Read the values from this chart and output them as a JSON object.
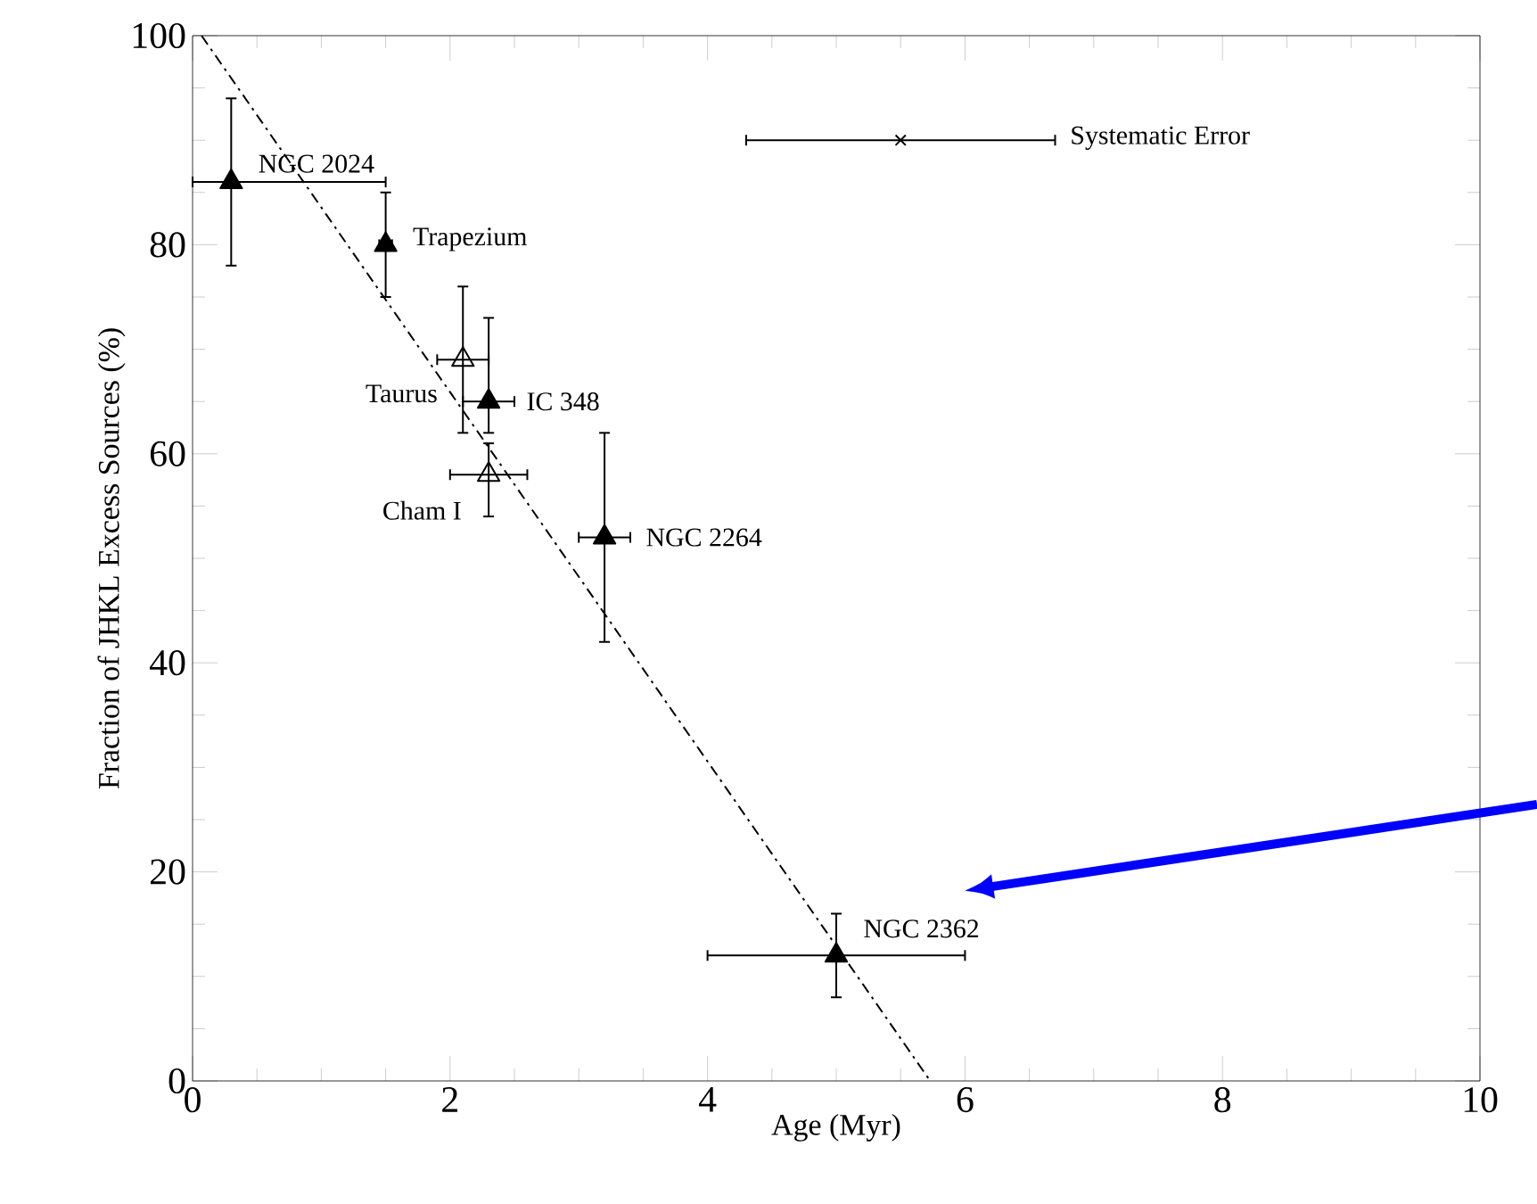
{
  "chart_data": {
    "type": "scatter",
    "xlabel": "Age (Myr)",
    "ylabel": "Fraction of JHKL Excess Sources (%)",
    "xlim": [
      0,
      10
    ],
    "ylim": [
      0,
      100
    ],
    "xticks": [
      0,
      2,
      4,
      6,
      8,
      10
    ],
    "yticks": [
      0,
      20,
      40,
      60,
      80,
      100
    ],
    "grid": false,
    "series": [
      {
        "marker": "triangle",
        "color": "#000000",
        "x": [
          0.3,
          1.5,
          2.3,
          3.2,
          5.0
        ],
        "values": [
          86,
          80,
          65,
          52,
          12
        ],
        "errors": [
          [
            78,
            94
          ],
          [
            75,
            85
          ],
          [
            62,
            73
          ],
          [
            42,
            62
          ],
          [
            8,
            16
          ]
        ],
        "xerrors": [
          [
            0,
            1.5
          ],
          [
            1.45,
            1.55
          ],
          [
            2.1,
            2.5
          ],
          [
            3.0,
            3.4
          ],
          [
            4.0,
            6.0
          ]
        ]
      },
      {
        "marker": "triangle",
        "color": "#000000",
        "x": [
          2.1,
          2.3
        ],
        "values": [
          69,
          58
        ],
        "errors": [
          [
            62,
            76
          ],
          [
            54,
            61
          ]
        ],
        "xerrors": [
          [
            1.9,
            2.3
          ],
          [
            2.0,
            2.6
          ]
        ]
      },
      {
        "marker": "cross",
        "color": "#000000",
        "x": [
          5.5
        ],
        "values": [
          90
        ],
        "xerrors": [
          [
            4.3,
            6.7
          ]
        ]
      },
      {
        "type": "line",
        "marker": "none",
        "line_style": "dashdot",
        "color": "#000000",
        "x": [
          0.07,
          5.73
        ],
        "values": [
          100,
          0
        ]
      }
    ],
    "annotations": [
      {
        "text": "NGC 2024",
        "x": 0.3,
        "y": 86
      },
      {
        "text": "Trapezium",
        "x": 1.5,
        "y": 80
      },
      {
        "text": "Taurus",
        "x": 2.1,
        "y": 69
      },
      {
        "text": "IC 348",
        "x": 2.3,
        "y": 65
      },
      {
        "text": "Cham I",
        "x": 2.3,
        "y": 58
      },
      {
        "text": "NGC 2264",
        "x": 3.2,
        "y": 52
      },
      {
        "text": "NGC 2362",
        "x": 5.0,
        "y": 12
      },
      "Systematic Error"
    ]
  }
}
